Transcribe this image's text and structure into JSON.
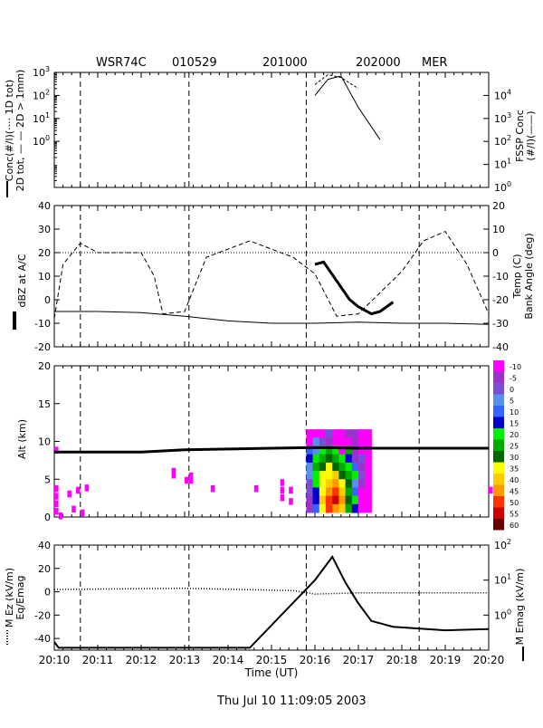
{
  "header": {
    "station": "WSR74C",
    "date_code": "010529",
    "start_code": "201000",
    "end_code": "202000",
    "site": "MER"
  },
  "footer": {
    "timestamp": "Thu Jul 10 11:09:05 2003"
  },
  "colors": {
    "axis": "#000000",
    "background": "#ffffff"
  },
  "chart_data": [
    {
      "type": "line",
      "panel": "concentration",
      "ylabel_left": "Conc(#/l)(···· 1D tot)",
      "ylabel_left2": "2D tot, — — 2D > 1mm)",
      "ylabel_right": "FSSP Conc",
      "ylabel_right2": "(#/l)(——)",
      "yscale": "log",
      "ylim_left": [
        0.01,
        1000
      ],
      "yticks_left": [
        "10^-1... ",
        "10^0",
        "10^1",
        "10^2",
        "10^3"
      ],
      "ytick_left_labels": [
        {
          "base": "10",
          "exp": "0",
          "value": 1
        },
        {
          "base": "10",
          "exp": "1",
          "value": 10
        },
        {
          "base": "10",
          "exp": "2",
          "value": 100
        },
        {
          "base": "10",
          "exp": "3",
          "value": 1000
        }
      ],
      "ylim_right": [
        1,
        100000
      ],
      "ytick_right_labels": [
        {
          "base": "10",
          "exp": "0",
          "value": 1
        },
        {
          "base": "10",
          "exp": "1",
          "value": 10
        },
        {
          "base": "10",
          "exp": "2",
          "value": 100
        },
        {
          "base": "10",
          "exp": "3",
          "value": 1000
        },
        {
          "base": "10",
          "exp": "4",
          "value": 10000
        }
      ],
      "series": [
        {
          "style": "solid",
          "x": [
            20.16,
            20.163,
            20.166,
            20.17,
            20.175
          ],
          "y": [
            100,
            500,
            700,
            30,
            1.2
          ]
        },
        {
          "style": "dashed",
          "x": [
            20.16,
            20.163,
            20.166,
            20.17
          ],
          "y": [
            300,
            800,
            600,
            200
          ]
        }
      ]
    },
    {
      "type": "line",
      "panel": "reflectivity",
      "ylabel_left": "dBZ at A/C",
      "ylabel_right": "Temp (C)",
      "ylabel_right2": "Bank Angle (deg)",
      "ylim_left": [
        -20,
        40
      ],
      "yticks_left": [
        -20,
        -10,
        0,
        10,
        20,
        30,
        40
      ],
      "ylim_right": [
        -40,
        20
      ],
      "yticks_right": [
        -40,
        -30,
        -20,
        -10,
        0,
        10,
        20
      ],
      "reference_line_left": 20,
      "series": [
        {
          "name": "",
          "style": "bold",
          "x": [
            20.16,
            20.162,
            20.165,
            20.168,
            20.17,
            20.173,
            20.175,
            20.178
          ],
          "y": [
            15,
            16,
            8,
            0,
            -3,
            -6,
            -5,
            -1
          ]
        },
        {
          "name": "",
          "style": "thin",
          "x": [
            20.1,
            20.11,
            20.12,
            20.13,
            20.14,
            20.15,
            20.16,
            20.17,
            20.18,
            20.19,
            20.2
          ],
          "y": [
            -5,
            -5,
            -5.5,
            -7,
            -9,
            -10,
            -10,
            -9.5,
            -10,
            -10,
            -10.5
          ]
        },
        {
          "name": "",
          "style": "dashed",
          "x": [
            20.1,
            20.102,
            20.106,
            20.11,
            20.12,
            20.123,
            20.125,
            20.13,
            20.135,
            20.145,
            20.155,
            20.16,
            20.165,
            20.17,
            20.18,
            20.185,
            20.19,
            20.195,
            20.2
          ],
          "y": [
            -8,
            15,
            24,
            20,
            20,
            10,
            -6,
            -5,
            18,
            25,
            18,
            11,
            -7,
            -6,
            12,
            25,
            29,
            15,
            -6
          ]
        }
      ]
    },
    {
      "type": "heatmap",
      "panel": "altitude",
      "ylabel": "Alt (km)",
      "ylim": [
        0,
        20
      ],
      "yticks": [
        0,
        5,
        10,
        15,
        20
      ],
      "flight_altitude": {
        "x": [
          20.1,
          20.12,
          20.13,
          20.14,
          20.15,
          20.16,
          20.17,
          20.18,
          20.2
        ],
        "y": [
          8.6,
          8.6,
          8.9,
          9.0,
          9.1,
          9.2,
          9.1,
          9.1,
          9.1
        ]
      },
      "colorbar": {
        "labels": [
          "-10",
          "-5",
          "0",
          "5",
          "10",
          "15",
          "20",
          "25",
          "30",
          "35",
          "40",
          "45",
          "50",
          "55",
          "60"
        ],
        "colors": [
          "#ff00ff",
          "#9933cc",
          "#7a4fd6",
          "#5a8ef0",
          "#3366ff",
          "#0000cc",
          "#00ee00",
          "#00aa00",
          "#006600",
          "#ffff00",
          "#ffcc00",
          "#ff9900",
          "#ff3300",
          "#cc0000",
          "#660000"
        ]
      }
    },
    {
      "type": "line",
      "panel": "electric-field",
      "ylabel_left": "M Ez (kV/m)",
      "ylabel_left2": "Eq/Emag",
      "ylabel_right": "M Emag (kV/m)",
      "xlabel": "Time (UT)",
      "ylim_left": [
        -50,
        40
      ],
      "yticks_left": [
        -40,
        -20,
        0,
        20,
        40
      ],
      "yscale_right": "log",
      "ytick_right_labels": [
        {
          "base": "10",
          "exp": "0",
          "value": 1
        },
        {
          "base": "10",
          "exp": "1",
          "value": 10
        },
        {
          "base": "10",
          "exp": "2",
          "value": 100
        }
      ],
      "xlim": [
        "20:10",
        "20:20"
      ],
      "xticks": [
        "20:10",
        "20:11",
        "20:12",
        "20:13",
        "20:14",
        "20:15",
        "20:16",
        "20:17",
        "20:18",
        "20:19",
        "20:20"
      ],
      "series": [
        {
          "style": "thick",
          "x": [
            20.1,
            20.101,
            20.145,
            20.16,
            20.164,
            20.167,
            20.17,
            20.173,
            20.178,
            20.19,
            20.2
          ],
          "y": [
            -43,
            -48,
            -48,
            10,
            30,
            8,
            -10,
            -25,
            -30,
            -33,
            -32
          ]
        },
        {
          "style": "dotted",
          "x": [
            20.1,
            20.13,
            20.155,
            20.16,
            20.17,
            20.2
          ],
          "y": [
            2,
            3,
            1,
            -2,
            -1,
            -1
          ]
        }
      ]
    }
  ]
}
